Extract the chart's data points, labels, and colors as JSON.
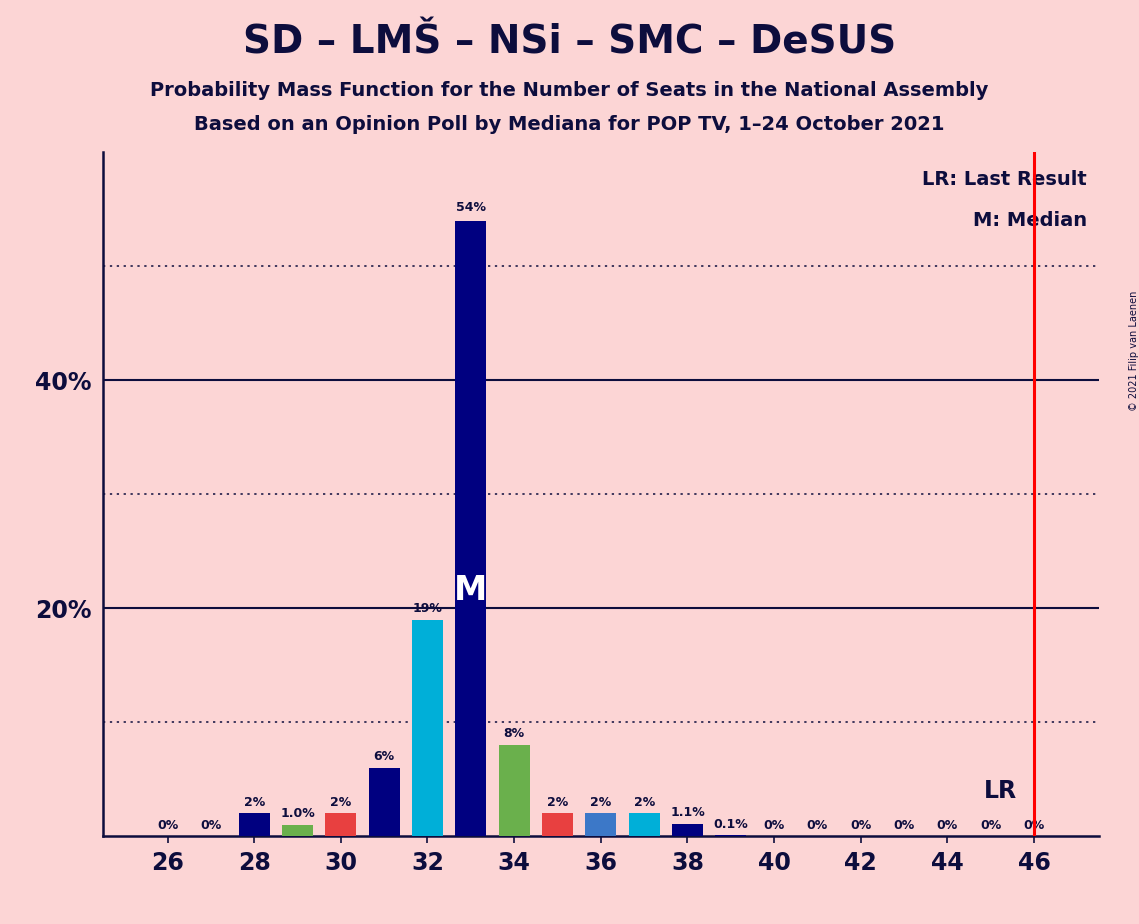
{
  "title": "SD – LMŠ – NSi – SMC – DeSUS",
  "subtitle1": "Probability Mass Function for the Number of Seats in the National Assembly",
  "subtitle2": "Based on an Opinion Poll by Mediana for POP TV, 1–24 October 2021",
  "copyright": "© 2021 Filip van Laenen",
  "bg_color": "#fcd5d5",
  "seats": [
    26,
    27,
    28,
    29,
    30,
    31,
    32,
    33,
    34,
    35,
    36,
    37,
    38,
    39,
    40,
    41,
    42,
    43,
    44,
    45,
    46
  ],
  "values": [
    0.0,
    0.0,
    2.0,
    1.0,
    2.0,
    6.0,
    19.0,
    54.0,
    8.0,
    2.0,
    2.0,
    2.0,
    1.1,
    0.1,
    0.0,
    0.0,
    0.0,
    0.0,
    0.0,
    0.0,
    0.0
  ],
  "colors": [
    "#000080",
    "#000080",
    "#000080",
    "#6ab04c",
    "#e84040",
    "#000080",
    "#00afd8",
    "#000080",
    "#6ab04c",
    "#e84040",
    "#3c78c8",
    "#00afd8",
    "#000080",
    "#000080",
    "#000080",
    "#000080",
    "#000080",
    "#000080",
    "#000080",
    "#000080",
    "#000080"
  ],
  "bar_labels": [
    "0%",
    "0%",
    "2%",
    "1.0%",
    "2%",
    "6%",
    "19%",
    "54%",
    "8%",
    "2%",
    "2%",
    "2%",
    "1.1%",
    "0.1%",
    "0%",
    "0%",
    "0%",
    "0%",
    "0%",
    "0%",
    "0%"
  ],
  "median_seat": 33,
  "lr_seat": 46,
  "xlim_min": 24.5,
  "xlim_max": 47.5,
  "ylim_max": 60,
  "solid_hlines": [
    20,
    40
  ],
  "dotted_hlines": [
    10,
    30,
    50
  ],
  "ytick_positions": [
    20,
    40
  ],
  "ytick_labels": [
    "20%",
    "40%"
  ],
  "text_color": "#0d0d3d",
  "bar_width": 0.72,
  "title_fontsize": 28,
  "subtitle_fontsize": 14,
  "tick_fontsize": 17,
  "label_fontsize": 9,
  "legend_fontsize": 14,
  "median_label_fontsize": 24,
  "lr_fontsize": 17
}
